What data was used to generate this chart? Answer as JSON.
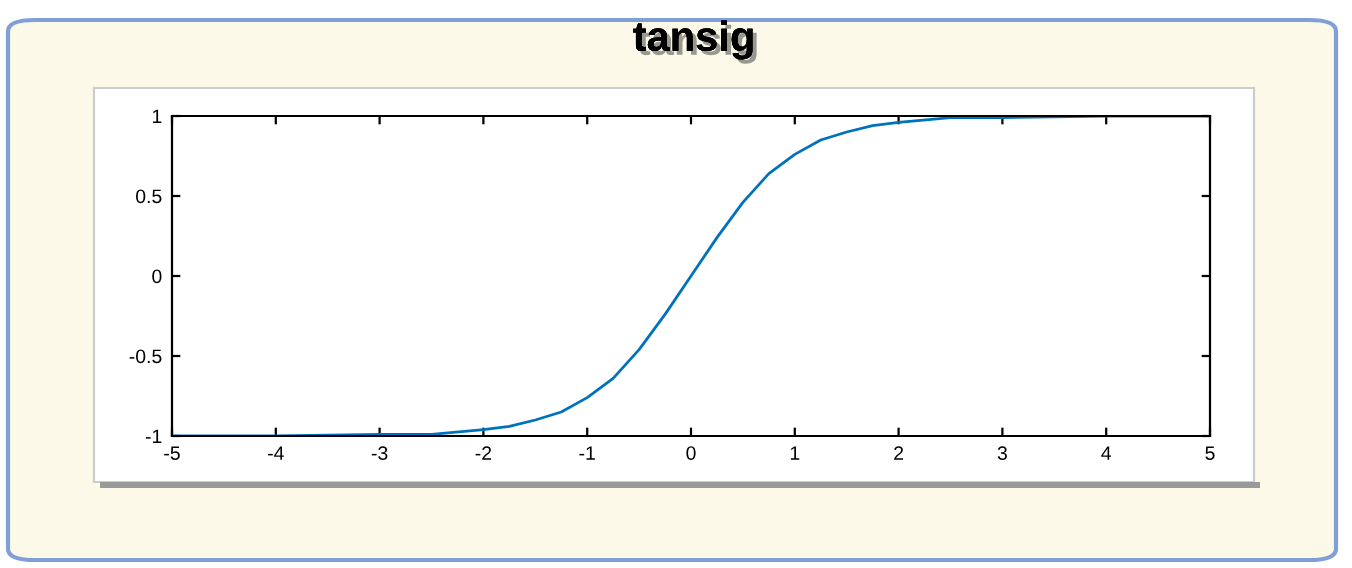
{
  "chart_data": {
    "type": "line",
    "title": "tansig",
    "x": [
      -5,
      -4,
      -3,
      -2.5,
      -2,
      -1.75,
      -1.5,
      -1.25,
      -1,
      -0.75,
      -0.5,
      -0.25,
      0,
      0.25,
      0.5,
      0.75,
      1,
      1.25,
      1.5,
      1.75,
      2,
      2.5,
      3,
      4,
      5
    ],
    "series": [
      {
        "color": "#0072bd",
        "values": [
          -1,
          -1,
          -0.99,
          -0.99,
          -0.96,
          -0.94,
          -0.9,
          -0.85,
          -0.76,
          -0.64,
          -0.46,
          -0.24,
          0,
          0.24,
          0.46,
          0.64,
          0.76,
          0.85,
          0.9,
          0.94,
          0.96,
          0.99,
          0.99,
          1,
          1
        ]
      }
    ],
    "xlim": [
      -5,
      5
    ],
    "xticks": [
      -5,
      -4,
      -3,
      -2,
      -1,
      0,
      1,
      2,
      3,
      4,
      5
    ],
    "ylim": [
      -1,
      1
    ],
    "yticks": [
      -1,
      -0.5,
      0,
      0.5,
      1
    ],
    "grid": false,
    "marker": "none",
    "line_style": "solid"
  }
}
